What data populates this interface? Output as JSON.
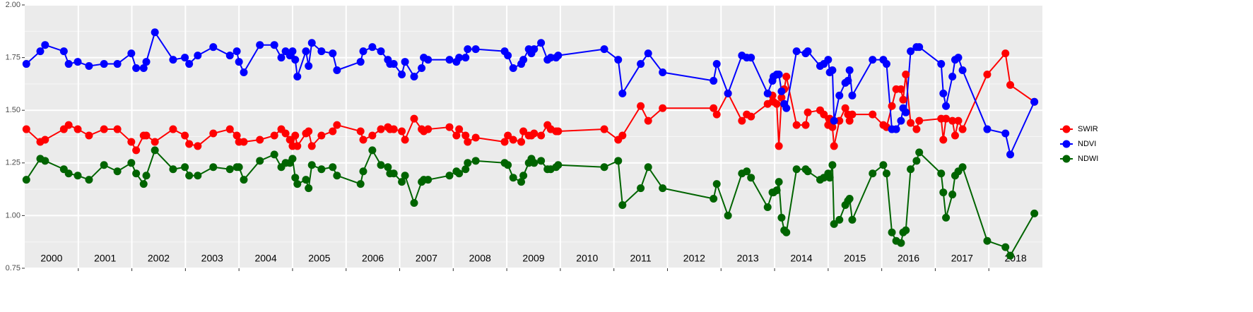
{
  "chart_data": {
    "type": "line",
    "x": [
      2000.03,
      2000.29,
      2000.38,
      2000.73,
      2000.82,
      2000.99,
      2001.2,
      2001.48,
      2001.73,
      2001.99,
      2002.08,
      2002.22,
      2002.27,
      2002.43,
      2002.77,
      2002.99,
      2003.07,
      2003.23,
      2003.52,
      2003.83,
      2003.96,
      2004.0,
      2004.09,
      2004.39,
      2004.66,
      2004.79,
      2004.87,
      2004.95,
      2005.0,
      2005.05,
      2005.09,
      2005.25,
      2005.3,
      2005.36,
      2005.54,
      2005.75,
      2005.83,
      2006.27,
      2006.32,
      2006.49,
      2006.65,
      2006.78,
      2006.82,
      2006.89,
      2007.04,
      2007.1,
      2007.27,
      2007.41,
      2007.45,
      2007.53,
      2007.93,
      2008.06,
      2008.11,
      2008.23,
      2008.27,
      2008.42,
      2008.96,
      2009.02,
      2009.12,
      2009.27,
      2009.31,
      2009.41,
      2009.46,
      2009.51,
      2009.64,
      2009.76,
      2009.82,
      2009.92,
      2009.96,
      2010.82,
      2011.08,
      2011.16,
      2011.5,
      2011.64,
      2011.91,
      2012.86,
      2012.92,
      2013.13,
      2013.39,
      2013.48,
      2013.56,
      2013.87,
      2013.96,
      2013.98,
      2014.04,
      2014.08,
      2014.13,
      2014.18,
      2014.22,
      2014.41,
      2014.58,
      2014.62,
      2014.85,
      2014.92,
      2015.0,
      2015.03,
      2015.08,
      2015.11,
      2015.21,
      2015.32,
      2015.37,
      2015.4,
      2015.45,
      2015.83,
      2016.03,
      2016.09,
      2016.19,
      2016.27,
      2016.36,
      2016.4,
      2016.45,
      2016.54,
      2016.65,
      2016.7,
      2017.11,
      2017.15,
      2017.2,
      2017.32,
      2017.37,
      2017.43,
      2017.51,
      2017.97,
      2018.31,
      2018.4,
      2018.85
    ],
    "series": [
      {
        "name": "SWIR",
        "color": "#ff0000",
        "values": [
          1.41,
          1.35,
          1.36,
          1.41,
          1.43,
          1.41,
          1.38,
          1.41,
          1.41,
          1.35,
          1.31,
          1.38,
          1.38,
          1.35,
          1.41,
          1.38,
          1.34,
          1.33,
          1.39,
          1.41,
          1.38,
          1.35,
          1.35,
          1.36,
          1.38,
          1.41,
          1.39,
          1.36,
          1.33,
          1.38,
          1.33,
          1.39,
          1.4,
          1.33,
          1.38,
          1.4,
          1.43,
          1.4,
          1.36,
          1.38,
          1.41,
          1.42,
          1.41,
          1.41,
          1.4,
          1.36,
          1.46,
          1.41,
          1.4,
          1.41,
          1.42,
          1.38,
          1.41,
          1.38,
          1.35,
          1.37,
          1.35,
          1.38,
          1.36,
          1.35,
          1.4,
          1.38,
          1.38,
          1.39,
          1.38,
          1.43,
          1.41,
          1.4,
          1.4,
          1.41,
          1.36,
          1.38,
          1.52,
          1.45,
          1.51,
          1.51,
          1.48,
          1.58,
          1.45,
          1.48,
          1.47,
          1.53,
          1.57,
          1.54,
          1.53,
          1.33,
          1.56,
          1.6,
          1.66,
          1.43,
          1.43,
          1.49,
          1.5,
          1.48,
          1.43,
          1.46,
          1.42,
          1.33,
          1.45,
          1.51,
          1.48,
          1.45,
          1.48,
          1.48,
          1.43,
          1.42,
          1.52,
          1.6,
          1.6,
          1.55,
          1.67,
          1.44,
          1.41,
          1.45,
          1.46,
          1.36,
          1.46,
          1.45,
          1.38,
          1.45,
          1.41,
          1.67,
          1.77,
          1.62,
          1.54
        ]
      },
      {
        "name": "NDVI",
        "color": "#0000ff",
        "values": [
          1.72,
          1.78,
          1.81,
          1.78,
          1.72,
          1.73,
          1.71,
          1.72,
          1.72,
          1.77,
          1.7,
          1.7,
          1.73,
          1.87,
          1.74,
          1.75,
          1.72,
          1.76,
          1.8,
          1.76,
          1.78,
          1.73,
          1.68,
          1.81,
          1.81,
          1.75,
          1.78,
          1.76,
          1.78,
          1.74,
          1.66,
          1.78,
          1.71,
          1.82,
          1.78,
          1.77,
          1.69,
          1.73,
          1.78,
          1.8,
          1.78,
          1.74,
          1.72,
          1.72,
          1.67,
          1.73,
          1.66,
          1.7,
          1.75,
          1.74,
          1.74,
          1.73,
          1.75,
          1.75,
          1.79,
          1.79,
          1.78,
          1.76,
          1.7,
          1.72,
          1.74,
          1.79,
          1.77,
          1.79,
          1.82,
          1.74,
          1.75,
          1.75,
          1.76,
          1.79,
          1.74,
          1.58,
          1.72,
          1.77,
          1.68,
          1.64,
          1.72,
          1.58,
          1.76,
          1.75,
          1.75,
          1.58,
          1.64,
          1.66,
          1.67,
          1.67,
          1.59,
          1.53,
          1.51,
          1.78,
          1.77,
          1.78,
          1.71,
          1.72,
          1.74,
          1.68,
          1.69,
          1.45,
          1.57,
          1.63,
          1.64,
          1.69,
          1.57,
          1.74,
          1.74,
          1.72,
          1.41,
          1.41,
          1.45,
          1.51,
          1.49,
          1.78,
          1.8,
          1.8,
          1.72,
          1.58,
          1.52,
          1.66,
          1.74,
          1.75,
          1.69,
          1.41,
          1.39,
          1.29,
          1.54
        ]
      },
      {
        "name": "NDWI",
        "color": "#006400",
        "values": [
          1.17,
          1.27,
          1.26,
          1.22,
          1.2,
          1.19,
          1.17,
          1.24,
          1.21,
          1.25,
          1.2,
          1.15,
          1.19,
          1.31,
          1.22,
          1.23,
          1.19,
          1.19,
          1.23,
          1.22,
          1.23,
          1.23,
          1.17,
          1.26,
          1.29,
          1.23,
          1.25,
          1.25,
          1.27,
          1.18,
          1.15,
          1.17,
          1.13,
          1.24,
          1.22,
          1.23,
          1.19,
          1.15,
          1.21,
          1.31,
          1.24,
          1.23,
          1.2,
          1.2,
          1.16,
          1.19,
          1.06,
          1.16,
          1.17,
          1.17,
          1.19,
          1.21,
          1.2,
          1.22,
          1.25,
          1.26,
          1.25,
          1.24,
          1.18,
          1.16,
          1.19,
          1.25,
          1.27,
          1.25,
          1.26,
          1.22,
          1.22,
          1.23,
          1.24,
          1.23,
          1.26,
          1.05,
          1.13,
          1.23,
          1.13,
          1.08,
          1.15,
          1.0,
          1.2,
          1.21,
          1.18,
          1.04,
          1.11,
          1.11,
          1.12,
          1.16,
          0.99,
          0.93,
          0.92,
          1.22,
          1.22,
          1.21,
          1.17,
          1.18,
          1.2,
          1.18,
          1.24,
          0.96,
          0.98,
          1.05,
          1.07,
          1.08,
          0.98,
          1.2,
          1.24,
          1.2,
          0.92,
          0.88,
          0.87,
          0.92,
          0.93,
          1.22,
          1.26,
          1.3,
          1.2,
          1.11,
          0.99,
          1.1,
          1.19,
          1.21,
          1.23,
          0.88,
          0.85,
          0.81,
          1.01
        ]
      }
    ],
    "xlim": [
      2000,
      2019
    ],
    "xticks": [
      2001,
      2002,
      2003,
      2004,
      2005,
      2006,
      2007,
      2008,
      2009,
      2010,
      2011,
      2012,
      2013,
      2014,
      2015,
      2016,
      2017,
      2018
    ],
    "year_labels": [
      "2000",
      "2001",
      "2002",
      "2003",
      "2004",
      "2005",
      "2006",
      "2007",
      "2008",
      "2009",
      "2010",
      "2011",
      "2012",
      "2013",
      "2014",
      "2015",
      "2016",
      "2017",
      "2018"
    ],
    "ylim": [
      0.75,
      2.0
    ],
    "yticks": [
      0.75,
      {
        "value": 1.0,
        "label": "1.00"
      },
      1.25,
      {
        "value": 1.5,
        "label": "1.50"
      },
      1.75,
      {
        "value": 2.0,
        "label": "2.00"
      }
    ],
    "grid": true
  }
}
